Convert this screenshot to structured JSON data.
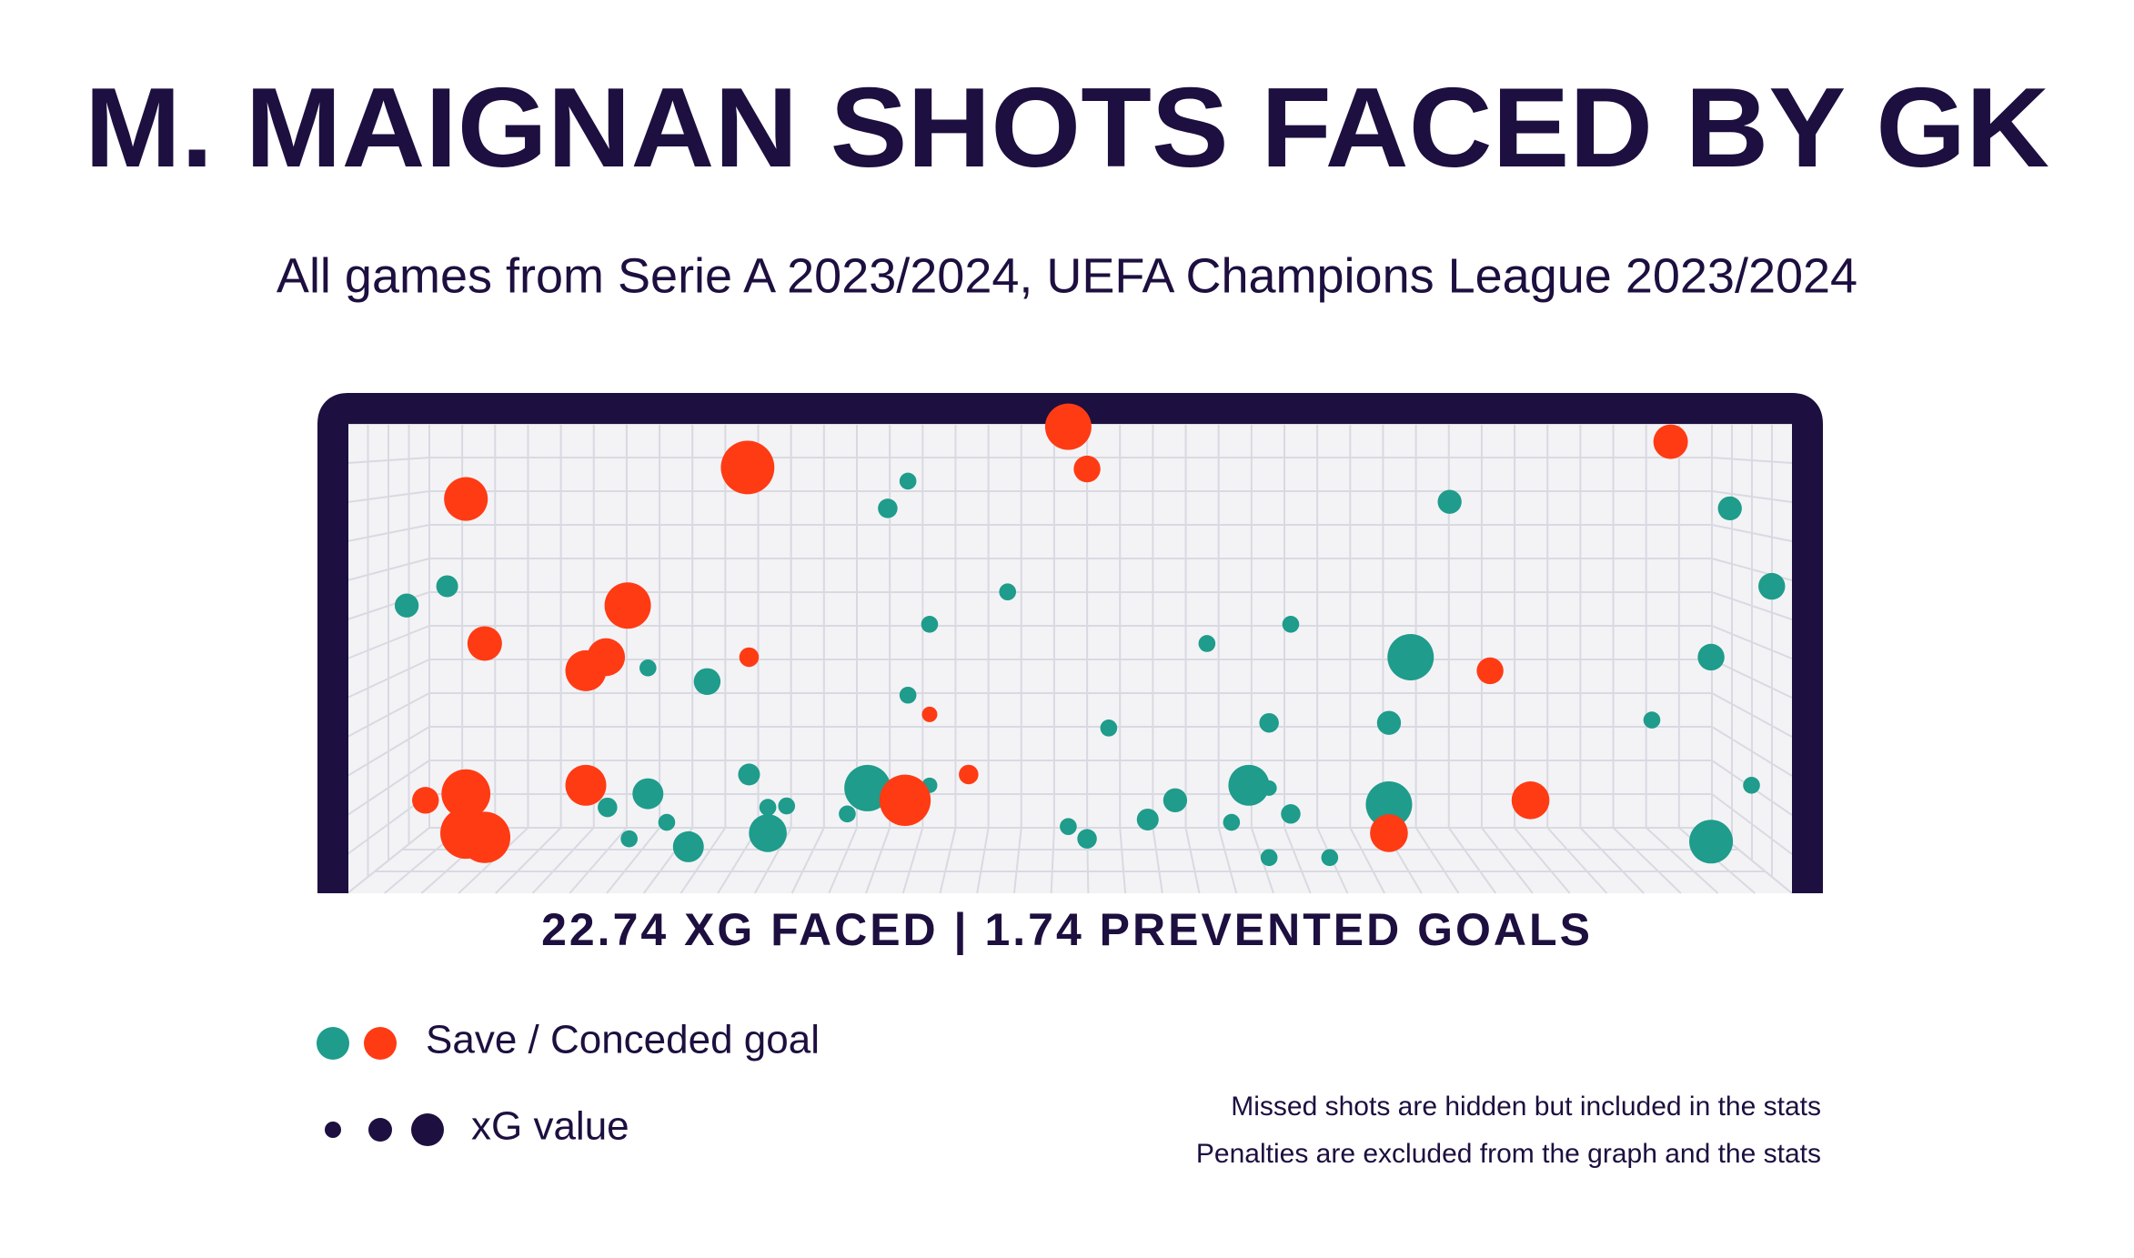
{
  "chart_data": {
    "type": "scatter",
    "title": "M. MAIGNAN SHOTS FACED BY GK",
    "subtitle": "All games from Serie A 2023/2024, UEFA Champions League 2023/2024",
    "stats": "22.74 XG FACED | 1.74 PREVENTED GOALS",
    "legend": {
      "color_label": "Save / Conceded goal",
      "size_label": "xG value"
    },
    "notes": [
      "Missed shots are hidden but included in the stats",
      "Penalties are excluded from the graph and the stats"
    ],
    "xlim": [
      0,
      100
    ],
    "ylim": [
      0,
      100
    ],
    "series": [
      {
        "color": "#1f9c8b",
        "x": [
          38.8,
          37.4,
          76.3,
          95.7,
          4.1,
          6.9,
          45.7,
          98.6,
          40.3,
          59.5,
          65.3,
          73.6,
          94.4,
          20.8,
          24.9,
          38.8,
          52.7,
          63.8,
          72.1,
          90.3,
          27.8,
          36.0,
          40.3,
          62.4,
          63.8,
          97.2,
          20.8,
          57.3,
          18.0,
          29.1,
          30.4,
          34.6,
          72.1,
          65.3,
          22.1,
          49.9,
          55.4,
          61.2,
          19.5,
          51.2,
          29.1,
          23.6,
          94.4,
          63.8,
          68.0
        ],
        "y": [
          87.8,
          82.0,
          83.4,
          82.0,
          61.3,
          65.4,
          64.2,
          65.4,
          57.3,
          53.2,
          57.3,
          50.3,
          50.3,
          48.0,
          45.1,
          42.2,
          35.2,
          36.3,
          36.3,
          36.9,
          25.3,
          22.4,
          23.0,
          23.0,
          22.4,
          23.0,
          21.2,
          19.8,
          18.3,
          18.3,
          18.6,
          16.9,
          18.9,
          16.9,
          15.1,
          14.2,
          15.7,
          15.1,
          11.6,
          11.6,
          12.8,
          9.9,
          11.0,
          7.6,
          7.6
        ],
        "size": [
          0.06,
          0.08,
          0.12,
          0.12,
          0.12,
          0.1,
          0.06,
          0.15,
          0.06,
          0.06,
          0.06,
          0.45,
          0.15,
          0.06,
          0.15,
          0.06,
          0.06,
          0.08,
          0.12,
          0.06,
          0.1,
          0.45,
          0.05,
          0.35,
          0.05,
          0.06,
          0.2,
          0.12,
          0.08,
          0.06,
          0.06,
          0.06,
          0.45,
          0.08,
          0.06,
          0.06,
          0.1,
          0.06,
          0.06,
          0.08,
          0.3,
          0.2,
          0.4,
          0.06,
          0.06
        ]
      },
      {
        "color": "#ff3b14",
        "x": [
          49.9,
          51.2,
          27.7,
          8.2,
          91.6,
          19.4,
          9.5,
          17.9,
          16.5,
          27.8,
          40.3,
          43.0,
          79.1,
          16.5,
          8.2,
          5.4,
          8.2,
          9.5,
          38.6,
          81.9,
          72.1
        ],
        "y": [
          99.4,
          90.4,
          90.7,
          84.0,
          96.2,
          61.3,
          53.2,
          50.3,
          47.4,
          50.3,
          38.1,
          25.3,
          47.4,
          23.0,
          21.2,
          19.8,
          12.8,
          11.9,
          19.8,
          19.8,
          12.8
        ],
        "size": [
          0.45,
          0.15,
          0.6,
          0.4,
          0.25,
          0.45,
          0.25,
          0.3,
          0.35,
          0.08,
          0.05,
          0.08,
          0.15,
          0.35,
          0.5,
          0.15,
          0.55,
          0.55,
          0.55,
          0.3,
          0.3
        ]
      }
    ]
  }
}
